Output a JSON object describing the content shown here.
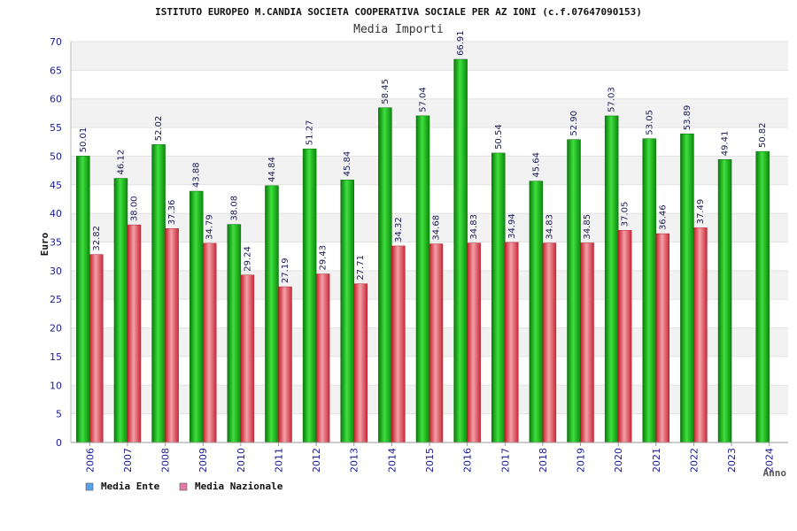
{
  "chart_data": {
    "type": "bar",
    "title": "ISTITUTO EUROPEO M.CANDIA SOCIETA COOPERATIVA SOCIALE PER AZ IONI (c.f.07647090153)",
    "subtitle": "Media Importi",
    "xlabel": "Anno",
    "ylabel": "Euro",
    "ylim": [
      0,
      70
    ],
    "yticks": [
      0,
      5,
      10,
      15,
      20,
      25,
      30,
      35,
      40,
      45,
      50,
      55,
      60,
      65,
      70
    ],
    "grid": "horizontal-bands",
    "legend_position": "bottom-left",
    "categories": [
      "2006",
      "2007",
      "2008",
      "2009",
      "2010",
      "2011",
      "2012",
      "2013",
      "2014",
      "2015",
      "2016",
      "2017",
      "2018",
      "2019",
      "2020",
      "2021",
      "2022",
      "2023",
      "2024"
    ],
    "series": [
      {
        "name": "Media Ente",
        "color": "#11b011",
        "legend_color": "#5aa0e6",
        "values": [
          50.01,
          46.12,
          52.02,
          43.88,
          38.08,
          44.84,
          51.27,
          45.84,
          58.45,
          57.04,
          66.91,
          50.54,
          45.64,
          52.9,
          57.03,
          53.05,
          53.89,
          49.41,
          50.82
        ],
        "labels": [
          "50.01",
          "46.12",
          "52.02",
          "43.88",
          "38.08",
          "44.84",
          "51.27",
          "45.84",
          "58.45",
          "57.04",
          "66.91",
          "50.54",
          "45.64",
          "52.90",
          "57.03",
          "53.05",
          "53.89",
          "49.41",
          "50.82"
        ]
      },
      {
        "name": "Media Nazionale",
        "color": "#e03c4a",
        "legend_color": "#e07aa8",
        "values": [
          32.82,
          38.0,
          37.36,
          34.79,
          29.24,
          27.19,
          29.43,
          27.71,
          34.32,
          34.68,
          34.83,
          34.94,
          34.83,
          34.85,
          37.05,
          36.46,
          37.49,
          null,
          null
        ],
        "labels": [
          "32.82",
          "38.00",
          "37.36",
          "34.79",
          "29.24",
          "27.19",
          "29.43",
          "27.71",
          "34.32",
          "34.68",
          "34.83",
          "34.94",
          "34.83",
          "34.85",
          "37.05",
          "36.46",
          "37.49",
          "",
          ""
        ]
      }
    ]
  }
}
